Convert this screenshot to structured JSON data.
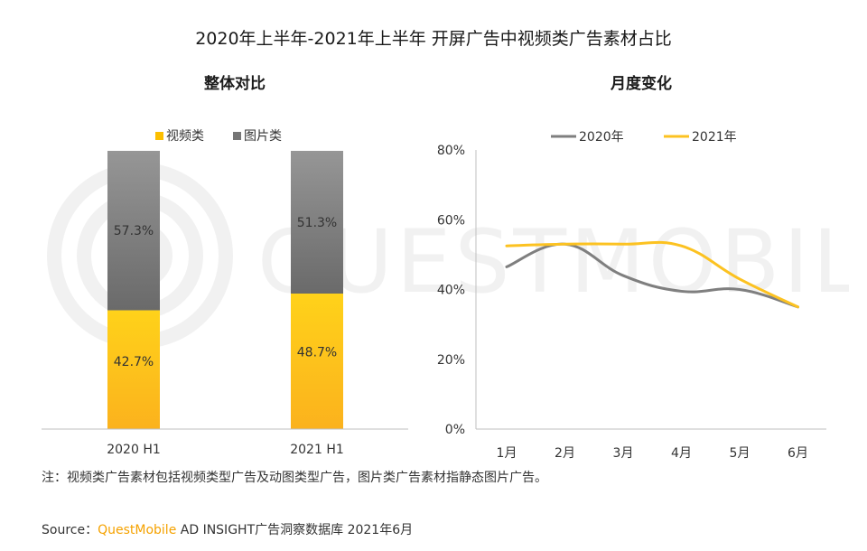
{
  "title": "2020年上半年-2021年上半年 开屏广告中视频类广告素材占比",
  "colors": {
    "video": "#fcbf00",
    "image": "#767676",
    "line_2020": "#7f7f7f",
    "line_2021": "#fcc221",
    "axis": "#bfbfbf"
  },
  "chart_data": [
    {
      "type": "bar",
      "stacked": true,
      "title": "整体对比",
      "categories": [
        "2020 H1",
        "2021 H1"
      ],
      "series": [
        {
          "name": "视频类",
          "values": [
            42.7,
            48.7
          ],
          "labels": [
            "42.7%",
            "48.7%"
          ]
        },
        {
          "name": "图片类",
          "values": [
            57.3,
            51.3
          ],
          "labels": [
            "57.3%",
            "51.3%"
          ]
        }
      ],
      "ylim": [
        0,
        100
      ],
      "legend": "top",
      "grid": false
    },
    {
      "type": "line",
      "title": "月度变化",
      "categories": [
        "1月",
        "2月",
        "3月",
        "4月",
        "5月",
        "6月"
      ],
      "series": [
        {
          "name": "2020年",
          "values": [
            46.5,
            53,
            44,
            39.5,
            40,
            35
          ]
        },
        {
          "name": "2021年",
          "values": [
            52.5,
            53,
            53,
            52.5,
            43,
            35
          ]
        }
      ],
      "yticks": [
        "0%",
        "20%",
        "40%",
        "60%",
        "80%"
      ],
      "ylim": [
        0,
        80
      ],
      "legend": "top",
      "grid": false
    }
  ],
  "note": "注：视频类广告素材包括视频类型广告及动图类型广告，图片类广告素材指静态图片广告。",
  "source": {
    "prefix": "Source：",
    "brand": "QuestMobile",
    "rest": " AD INSIGHT广告洞察数据库 2021年6月"
  }
}
